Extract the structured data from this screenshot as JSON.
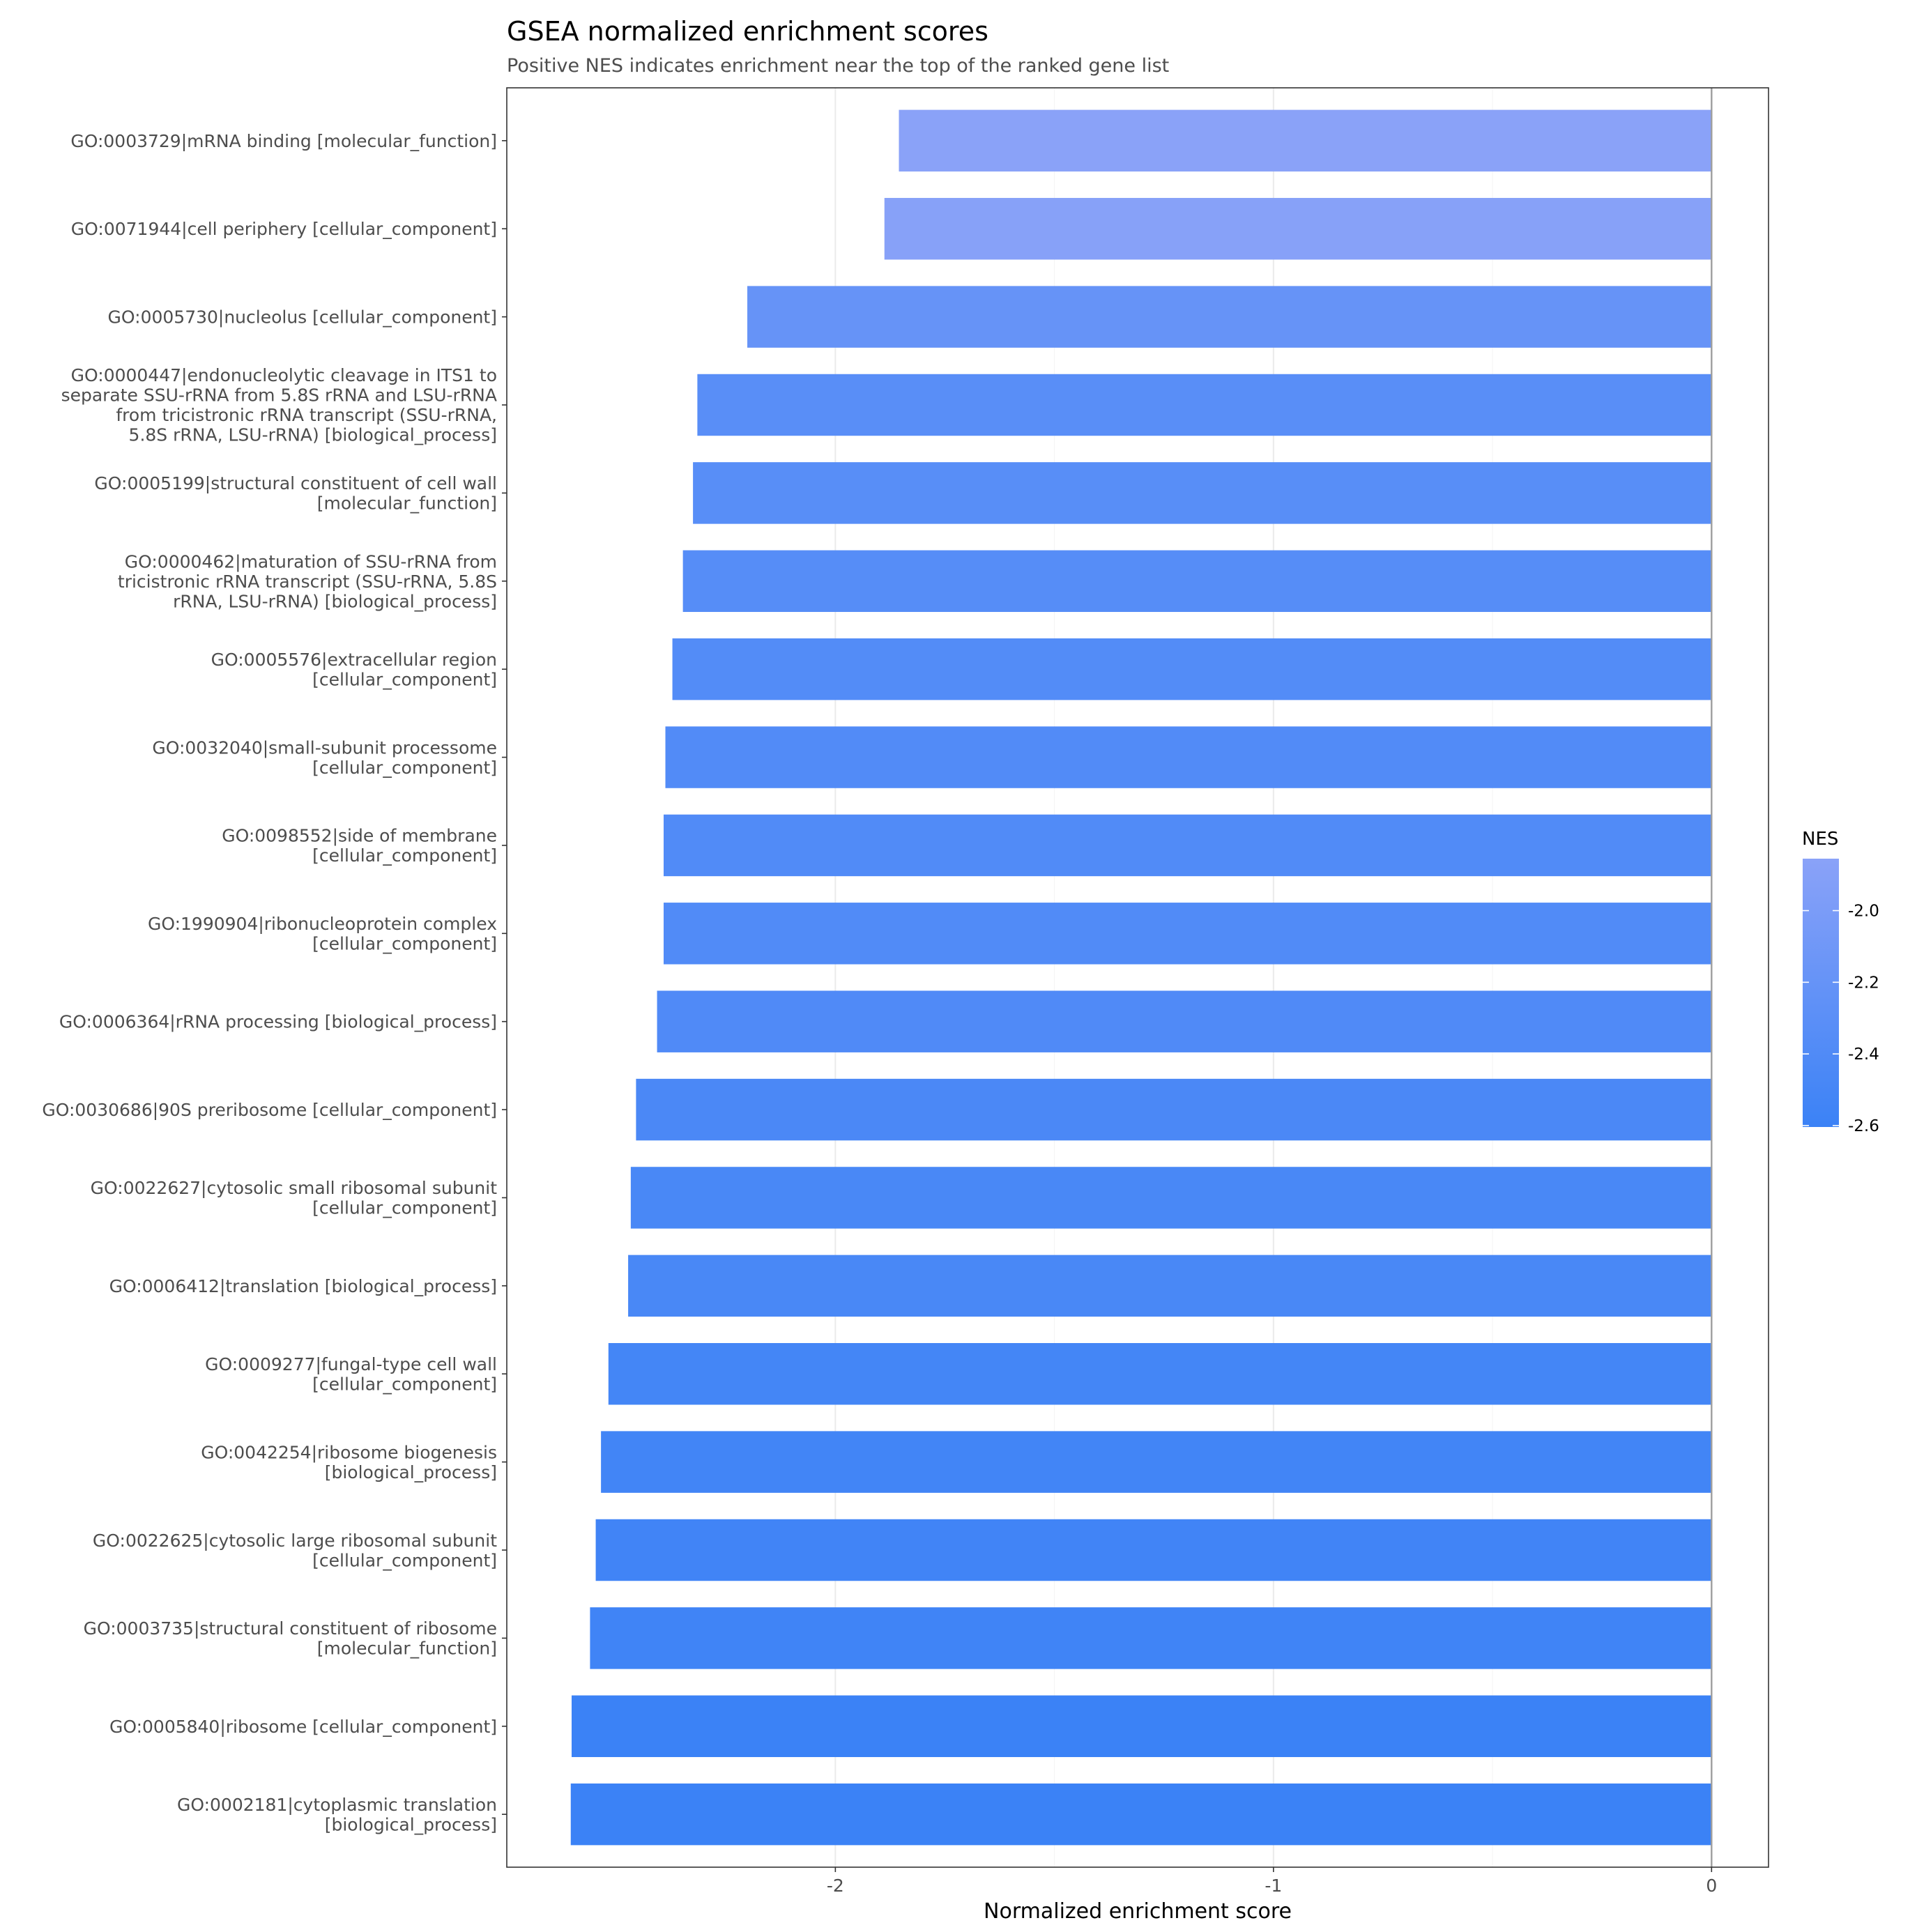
{
  "chart_data": {
    "type": "bar",
    "orientation": "horizontal",
    "title": "GSEA normalized enrichment scores",
    "subtitle": "Positive NES indicates enrichment near the top of the ranked gene list",
    "xlabel": "Normalized enrichment score",
    "ylabel": "",
    "xlim": [
      -2.75,
      0.13
    ],
    "xticks": [
      -2,
      -1,
      0
    ],
    "xtick_labels": [
      "-2",
      "-1",
      "0"
    ],
    "grid": true,
    "zero_line": true,
    "categories": [
      "GO:0003729|mRNA binding [molecular_function]",
      "GO:0071944|cell periphery [cellular_component]",
      "GO:0005730|nucleolus [cellular_component]",
      "GO:0000447|endonucleolytic cleavage in ITS1 to separate SSU-rRNA from 5.8S rRNA and LSU-rRNA from tricistronic rRNA transcript (SSU-rRNA, 5.8S rRNA, LSU-rRNA) [biological_process]",
      "GO:0005199|structural constituent of cell wall [molecular_function]",
      "GO:0000462|maturation of SSU-rRNA from tricistronic rRNA transcript (SSU-rRNA, 5.8S rRNA, LSU-rRNA) [biological_process]",
      "GO:0005576|extracellular region [cellular_component]",
      "GO:0032040|small-subunit processome [cellular_component]",
      "GO:0098552|side of membrane [cellular_component]",
      "GO:1990904|ribonucleoprotein complex [cellular_component]",
      "GO:0006364|rRNA processing [biological_process]",
      "GO:0030686|90S preribosome [cellular_component]",
      "GO:0022627|cytosolic small ribosomal subunit [cellular_component]",
      "GO:0006412|translation [biological_process]",
      "GO:0009277|fungal-type cell wall [cellular_component]",
      "GO:0042254|ribosome biogenesis [biological_process]",
      "GO:0022625|cytosolic large ribosomal subunit [cellular_component]",
      "GO:0003735|structural constituent of ribosome [molecular_function]",
      "GO:0005840|ribosome [cellular_component]",
      "GO:0002181|cytoplasmic translation [biological_process]"
    ],
    "category_label_lines": [
      [
        "GO:0003729|mRNA binding [molecular_function]"
      ],
      [
        "GO:0071944|cell periphery [cellular_component]"
      ],
      [
        "GO:0005730|nucleolus [cellular_component]"
      ],
      [
        "GO:0000447|endonucleolytic cleavage in ITS1 to",
        "separate SSU-rRNA from 5.8S rRNA and LSU-rRNA",
        "from tricistronic rRNA transcript (SSU-rRNA,",
        "5.8S rRNA, LSU-rRNA) [biological_process]"
      ],
      [
        "GO:0005199|structural constituent of cell wall",
        "[molecular_function]"
      ],
      [
        "GO:0000462|maturation of SSU-rRNA from",
        "tricistronic rRNA transcript (SSU-rRNA, 5.8S",
        "rRNA, LSU-rRNA) [biological_process]"
      ],
      [
        "GO:0005576|extracellular region",
        "[cellular_component]"
      ],
      [
        "GO:0032040|small-subunit processome",
        "[cellular_component]"
      ],
      [
        "GO:0098552|side of membrane",
        "[cellular_component]"
      ],
      [
        "GO:1990904|ribonucleoprotein complex",
        "[cellular_component]"
      ],
      [
        "GO:0006364|rRNA processing [biological_process]"
      ],
      [
        "GO:0030686|90S preribosome [cellular_component]"
      ],
      [
        "GO:0022627|cytosolic small ribosomal subunit",
        "[cellular_component]"
      ],
      [
        "GO:0006412|translation [biological_process]"
      ],
      [
        "GO:0009277|fungal-type cell wall",
        "[cellular_component]"
      ],
      [
        "GO:0042254|ribosome biogenesis",
        "[biological_process]"
      ],
      [
        "GO:0022625|cytosolic large ribosomal subunit",
        "[cellular_component]"
      ],
      [
        "GO:0003735|structural constituent of ribosome",
        "[molecular_function]"
      ],
      [
        "GO:0005840|ribosome [cellular_component]"
      ],
      [
        "GO:0002181|cytoplasmic translation",
        "[biological_process]"
      ]
    ],
    "values": [
      -1.855,
      -1.888,
      -2.201,
      -2.315,
      -2.325,
      -2.348,
      -2.372,
      -2.388,
      -2.392,
      -2.392,
      -2.407,
      -2.455,
      -2.467,
      -2.473,
      -2.518,
      -2.535,
      -2.547,
      -2.56,
      -2.602,
      -2.604
    ],
    "color_scale": {
      "variable": "NES",
      "title": "NES",
      "domain": [
        -2.604,
        -1.855
      ],
      "color_low": "#3b82f6",
      "color_high": "#8aa2f8",
      "ticks": [
        -2.0,
        -2.2,
        -2.4,
        -2.6
      ],
      "tick_labels": [
        "-2.0",
        "-2.2",
        "-2.4",
        "-2.6"
      ]
    },
    "legend_position": "right"
  }
}
